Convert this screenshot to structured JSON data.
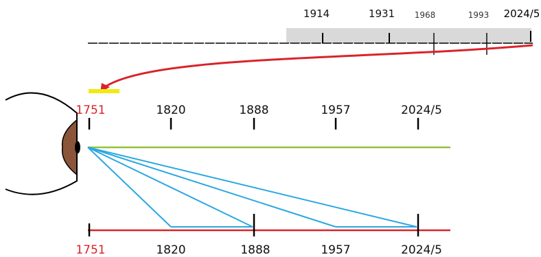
{
  "colors": {
    "red": "#d9232b",
    "black": "#000000",
    "green": "#92c23b",
    "blue": "#2aa7e1",
    "band": "#d9d9d9",
    "highlight": "#f2ea10",
    "iris": "#8a5538"
  },
  "top_timeline": {
    "labels": [
      {
        "text": "1914"
      },
      {
        "text": "1931"
      },
      {
        "text": "1968"
      },
      {
        "text": "1993"
      },
      {
        "text": "2024/5"
      }
    ]
  },
  "middle_timeline": {
    "labels": [
      {
        "text": "1751"
      },
      {
        "text": "1820"
      },
      {
        "text": "1888"
      },
      {
        "text": "1957"
      },
      {
        "text": "2024/5"
      }
    ]
  },
  "bottom_timeline": {
    "labels": [
      {
        "text": "1751"
      },
      {
        "text": "1820"
      },
      {
        "text": "1888"
      },
      {
        "text": "1957"
      },
      {
        "text": "2024/5"
      }
    ]
  }
}
